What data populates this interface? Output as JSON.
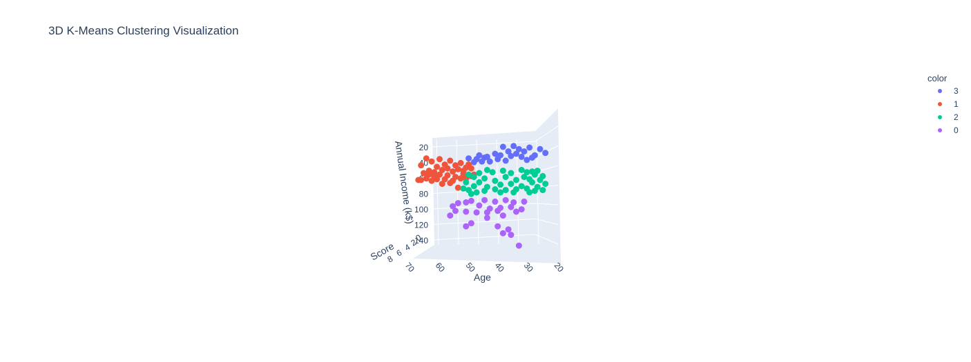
{
  "chart_data": {
    "type": "scatter",
    "title": "3D K-Means Clustering Visualization",
    "axes": {
      "x": {
        "label": "Age",
        "ticks": [
          "70",
          "60",
          "50",
          "40",
          "30",
          "20"
        ]
      },
      "y": {
        "label": "Annual Income (k$)",
        "ticks": [
          "20",
          "40",
          "60",
          "80",
          "100",
          "120",
          "140"
        ]
      },
      "z": {
        "label": "Score",
        "ticks": [
          "8",
          "6",
          "4",
          "2",
          "0"
        ]
      }
    },
    "legend": {
      "title": "color",
      "placement": "top-right"
    },
    "series": [
      {
        "name": "3",
        "color": "#636efa",
        "points": [
          [
            34,
            18
          ],
          [
            38,
            19
          ],
          [
            32,
            22
          ],
          [
            28,
            20
          ],
          [
            24,
            22
          ],
          [
            30,
            25
          ],
          [
            36,
            25
          ],
          [
            22,
            27
          ],
          [
            33,
            28
          ],
          [
            41,
            28
          ],
          [
            26,
            30
          ],
          [
            35,
            31
          ],
          [
            31,
            32
          ],
          [
            45,
            33
          ],
          [
            48,
            35
          ],
          [
            40,
            35
          ],
          [
            29,
            36
          ],
          [
            37,
            37
          ],
          [
            43,
            38
          ],
          [
            47,
            30
          ],
          [
            39,
            30
          ],
          [
            44,
            32
          ],
          [
            51,
            34
          ],
          [
            46,
            38
          ],
          [
            27,
            33
          ],
          [
            49,
            39
          ]
        ]
      },
      {
        "name": "1",
        "color": "#ef553b",
        "points": [
          [
            67,
            34
          ],
          [
            62,
            35
          ],
          [
            58,
            37
          ],
          [
            65,
            38
          ],
          [
            60,
            42
          ],
          [
            54,
            40
          ],
          [
            56,
            43
          ],
          [
            69,
            43
          ],
          [
            63,
            45
          ],
          [
            59,
            47
          ],
          [
            52,
            46
          ],
          [
            55,
            48
          ],
          [
            61,
            49
          ],
          [
            66,
            50
          ],
          [
            53,
            50
          ],
          [
            57,
            51
          ],
          [
            64,
            52
          ],
          [
            68,
            53
          ],
          [
            50,
            47
          ],
          [
            51,
            42
          ],
          [
            62,
            55
          ],
          [
            66,
            55
          ],
          [
            59,
            56
          ],
          [
            53,
            54
          ],
          [
            56,
            58
          ],
          [
            64,
            58
          ],
          [
            60,
            61
          ],
          [
            67,
            60
          ],
          [
            70,
            62
          ],
          [
            63,
            61
          ],
          [
            54,
            60
          ],
          [
            58,
            66
          ],
          [
            65,
            63
          ],
          [
            57,
            63
          ],
          [
            61,
            67
          ],
          [
            50,
            57
          ],
          [
            52,
            60
          ],
          [
            49,
            55
          ],
          [
            55,
            72
          ],
          [
            69,
            62
          ]
        ]
      },
      {
        "name": "2",
        "color": "#00cc96",
        "points": [
          [
            44,
            49
          ],
          [
            38,
            50
          ],
          [
            29,
            52
          ],
          [
            27,
            51
          ],
          [
            25,
            50
          ],
          [
            31,
            49
          ],
          [
            35,
            53
          ],
          [
            42,
            52
          ],
          [
            47,
            53
          ],
          [
            51,
            55
          ],
          [
            26,
            55
          ],
          [
            23,
            57
          ],
          [
            30,
            58
          ],
          [
            37,
            58
          ],
          [
            45,
            60
          ],
          [
            49,
            58
          ],
          [
            28,
            61
          ],
          [
            24,
            62
          ],
          [
            33,
            62
          ],
          [
            41,
            63
          ],
          [
            47,
            65
          ],
          [
            52,
            65
          ],
          [
            27,
            65
          ],
          [
            22,
            67
          ],
          [
            35,
            67
          ],
          [
            39,
            68
          ],
          [
            44,
            71
          ],
          [
            49,
            70
          ],
          [
            31,
            70
          ],
          [
            25,
            71
          ],
          [
            29,
            73
          ],
          [
            33,
            74
          ],
          [
            37,
            75
          ],
          [
            41,
            74
          ],
          [
            45,
            76
          ],
          [
            51,
            75
          ],
          [
            53,
            73
          ],
          [
            26,
            76
          ],
          [
            28,
            78
          ],
          [
            34,
            78
          ],
          [
            39,
            78
          ],
          [
            48,
            78
          ],
          [
            50,
            80
          ],
          [
            23,
            75
          ]
        ]
      },
      {
        "name": "0",
        "color": "#ab63fa",
        "points": [
          [
            50,
            89
          ],
          [
            45,
            88
          ],
          [
            41,
            90
          ],
          [
            37,
            88
          ],
          [
            34,
            91
          ],
          [
            30,
            90
          ],
          [
            52,
            91
          ],
          [
            55,
            92
          ],
          [
            57,
            96
          ],
          [
            47,
            95
          ],
          [
            43,
            99
          ],
          [
            39,
            98
          ],
          [
            35,
            97
          ],
          [
            31,
            100
          ],
          [
            33,
            103
          ],
          [
            40,
            102
          ],
          [
            44,
            104
          ],
          [
            48,
            104
          ],
          [
            52,
            103
          ],
          [
            56,
            102
          ],
          [
            58,
            108
          ],
          [
            38,
            108
          ],
          [
            44,
            111
          ],
          [
            50,
            118
          ],
          [
            52,
            122
          ],
          [
            40,
            122
          ],
          [
            36,
            126
          ],
          [
            38,
            131
          ],
          [
            35,
            133
          ],
          [
            32,
            147
          ]
        ]
      }
    ]
  }
}
